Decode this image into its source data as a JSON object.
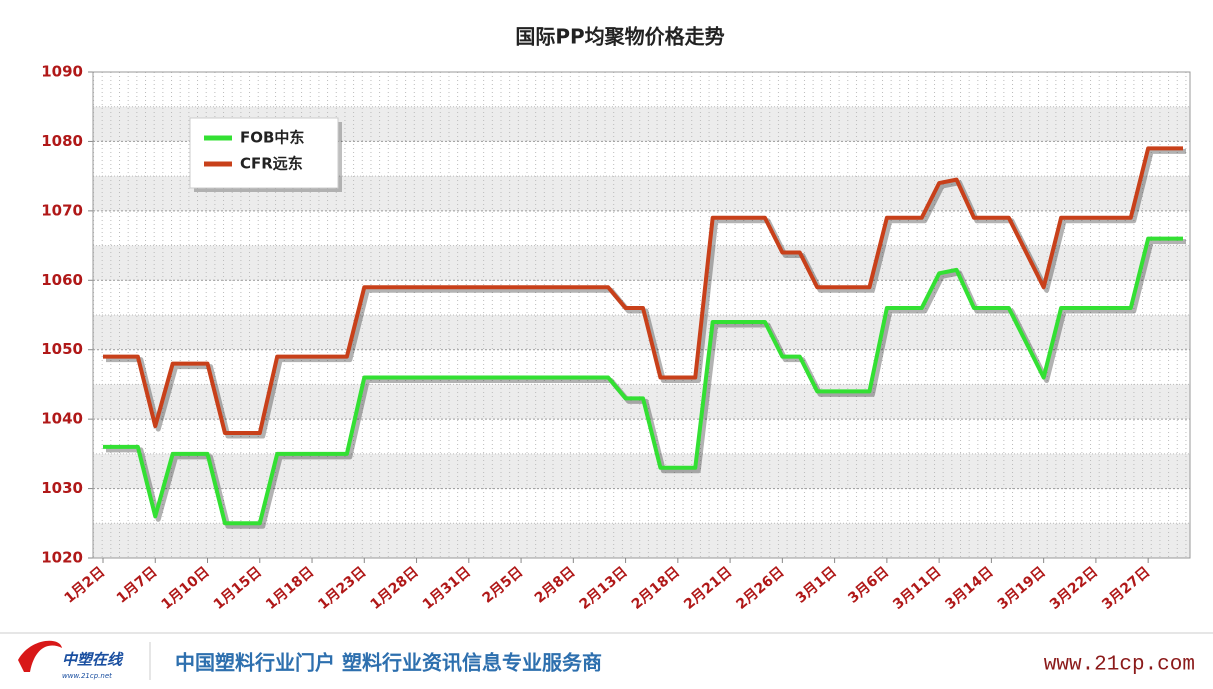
{
  "chart_data": {
    "type": "line",
    "title": "国际PP均聚物价格走势",
    "categories": [
      "1月2日",
      null,
      null,
      "1月7日",
      null,
      null,
      "1月10日",
      null,
      null,
      "1月15日",
      null,
      null,
      "1月18日",
      null,
      null,
      "1月23日",
      null,
      null,
      "1月28日",
      null,
      null,
      "1月31日",
      null,
      null,
      "2月5日",
      null,
      null,
      "2月8日",
      null,
      null,
      "2月13日",
      null,
      null,
      "2月18日",
      null,
      null,
      "2月21日",
      null,
      null,
      "2月26日",
      null,
      null,
      "3月1日",
      null,
      null,
      "3月6日",
      null,
      null,
      "3月11日",
      null,
      null,
      "3月14日",
      null,
      null,
      "3月19日",
      null,
      null,
      "3月22日",
      null,
      null,
      "3月27日",
      null,
      null
    ],
    "series": [
      {
        "name": "FOB中东",
        "color": "#33e033",
        "values": [
          1036,
          1036,
          1036,
          1026,
          1035,
          1035,
          1035,
          1025,
          1025,
          1025,
          1035,
          1035,
          1035,
          1035,
          1035,
          1046,
          1046,
          1046,
          1046,
          1046,
          1046,
          1046,
          1046,
          1046,
          1046,
          1046,
          1046,
          1046,
          1046,
          1046,
          1043,
          1043,
          1033,
          1033,
          1033,
          1054,
          1054,
          1054,
          1054,
          1049,
          1049,
          1044,
          1044,
          1044,
          1044,
          1056,
          1056,
          1056,
          1061,
          1061.5,
          1056,
          1056,
          1056,
          1051,
          1046,
          1056,
          1056,
          1056,
          1056,
          1056,
          1066,
          1066,
          1066
        ]
      },
      {
        "name": "CFR远东",
        "color": "#c8401a",
        "values": [
          1049,
          1049,
          1049,
          1039,
          1048,
          1048,
          1048,
          1038,
          1038,
          1038,
          1049,
          1049,
          1049,
          1049,
          1049,
          1059,
          1059,
          1059,
          1059,
          1059,
          1059,
          1059,
          1059,
          1059,
          1059,
          1059,
          1059,
          1059,
          1059,
          1059,
          1056,
          1056,
          1046,
          1046,
          1046,
          1069,
          1069,
          1069,
          1069,
          1064,
          1064,
          1059,
          1059,
          1059,
          1059,
          1069,
          1069,
          1069,
          1074,
          1074.5,
          1069,
          1069,
          1069,
          1064,
          1059,
          1069,
          1069,
          1069,
          1069,
          1069,
          1079,
          1079,
          1079
        ]
      }
    ],
    "ylim": [
      1020,
      1090
    ],
    "yticks": [
      1020,
      1030,
      1040,
      1050,
      1060,
      1070,
      1080,
      1090
    ],
    "grid": true,
    "legend": "upper-left"
  },
  "footer": {
    "logo_name": "中塑在线",
    "logo_url": "www.21cp.net",
    "slogan": "中国塑料行业门户 塑料行业资讯信息专业服务商",
    "site": "www.21cp.com"
  }
}
